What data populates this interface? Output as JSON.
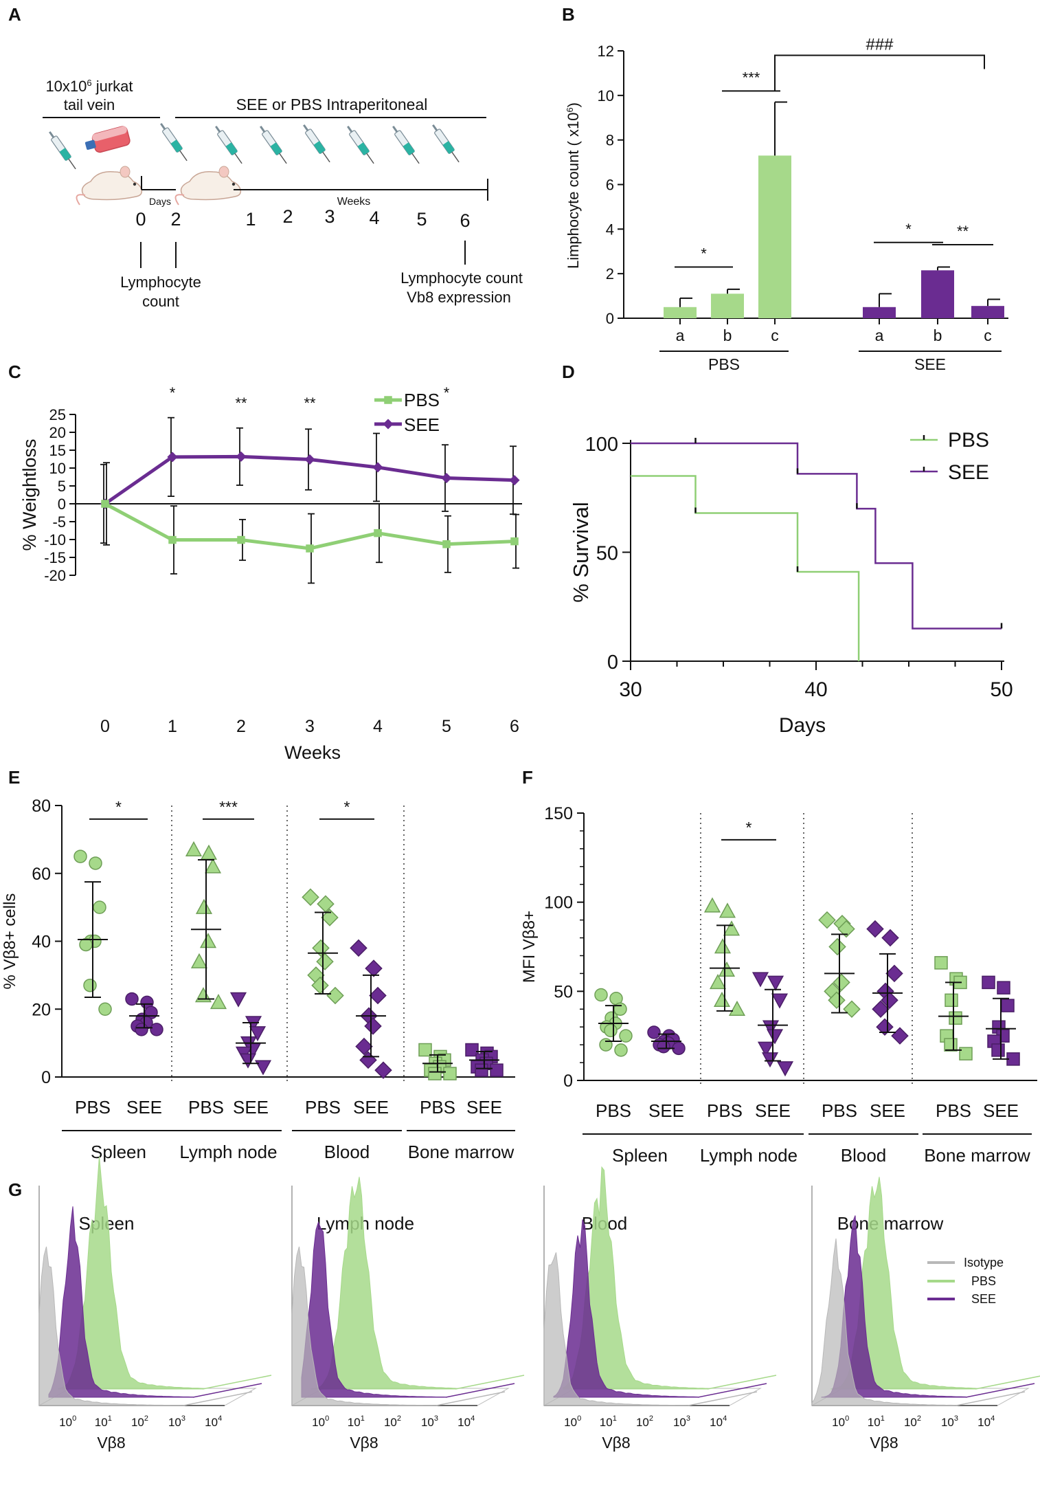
{
  "colors": {
    "pbs": "#a6d98a",
    "pbs_line": "#8fcf75",
    "see": "#6a2c91",
    "isotype": "#b8b8b8",
    "axis": "#111111"
  },
  "panel_labels": [
    "A",
    "B",
    "C",
    "D",
    "E",
    "F",
    "G"
  ],
  "chart_data": [
    {
      "panel": "A",
      "type": "other",
      "injection_label": "10x10⁶ jurkat tail vein",
      "injection_line1": "10x10",
      "injection_sup": "6",
      "injection_line2": " jurkat",
      "injection_line3": "tail vein",
      "treatment_label": "SEE or PBS Intraperitoneal",
      "days_label": "Days",
      "weeks_label": "Weeks",
      "timepoints": [
        "0",
        "2",
        "1",
        "2",
        "3",
        "4",
        "5",
        "6"
      ],
      "readout_early": [
        "Lymphocyte",
        "count"
      ],
      "readout_late": [
        "Lymphocyte count",
        "Vb8 expression"
      ],
      "icons": {
        "syringes": 8,
        "mice": 2,
        "flask": 1
      }
    },
    {
      "panel": "B",
      "type": "bar",
      "ylabel": "Limphocyte count  ( x10⁶)",
      "ylabel_main": "Limphocyte count  ( x10",
      "ylabel_sup": "6",
      "ylabel_close": ")",
      "ylim": [
        0,
        12
      ],
      "yticks": [
        0,
        2,
        4,
        6,
        8,
        10,
        12
      ],
      "group_names": [
        "PBS",
        "SEE"
      ],
      "categories": [
        "a",
        "b",
        "c"
      ],
      "series": [
        {
          "name": "PBS",
          "values": [
            0.5,
            1.1,
            7.3
          ],
          "errors": [
            0.4,
            0.2,
            2.4
          ]
        },
        {
          "name": "SEE",
          "values": [
            0.5,
            2.15,
            0.55
          ],
          "errors": [
            0.6,
            0.15,
            0.3
          ]
        }
      ],
      "significance": [
        {
          "group": 0,
          "from": 0,
          "to": 1,
          "label": "*",
          "y": 2.3
        },
        {
          "group": 0,
          "from": 1,
          "to": 2,
          "label": "***",
          "y": 10.2
        },
        {
          "group": 1,
          "from": 0,
          "to": 1,
          "label": "*",
          "y": 3.4
        },
        {
          "group": 1,
          "from": 1,
          "to": 2,
          "label": "**",
          "y": 3.3
        }
      ],
      "bracket": {
        "label": "###",
        "y": 11.8
      }
    },
    {
      "panel": "C",
      "type": "line",
      "xlabel": "Weeks",
      "ylabel": "%  Weightloss",
      "x": [
        0,
        1,
        2,
        3,
        4,
        5,
        6
      ],
      "ylim": [
        -20,
        25
      ],
      "yticks": [
        -20,
        -15,
        -10,
        -5,
        0,
        5,
        10,
        15,
        20,
        25
      ],
      "legend": [
        "PBS",
        "SEE"
      ],
      "series": [
        {
          "name": "SEE",
          "values": [
            0,
            13.1,
            13.2,
            12.4,
            10.2,
            7.2,
            6.6
          ],
          "errors": [
            11,
            11,
            8,
            8.5,
            9.5,
            9.3,
            9.5
          ]
        },
        {
          "name": "PBS",
          "values": [
            0,
            -10.1,
            -10.1,
            -12.5,
            -8.2,
            -11.3,
            -10.5
          ],
          "errors": [
            11.5,
            9.5,
            5.7,
            9.7,
            8.2,
            7.9,
            7.5
          ]
        }
      ],
      "significance": [
        {
          "x": 1,
          "label": "*"
        },
        {
          "x": 2,
          "label": "**"
        },
        {
          "x": 3,
          "label": "**"
        },
        {
          "x": 5,
          "label": "*"
        }
      ]
    },
    {
      "panel": "D",
      "type": "line",
      "xlabel": "Days",
      "ylabel": "% Survival",
      "xlim": [
        30,
        50
      ],
      "xticks": [
        30,
        40,
        50
      ],
      "ylim": [
        0,
        100
      ],
      "yticks": [
        0,
        50,
        100
      ],
      "legend": [
        "PBS",
        "SEE"
      ],
      "series": [
        {
          "name": "PBS",
          "x": [
            30,
            33.5,
            33.5,
            39,
            39,
            42.3,
            42.3
          ],
          "values": [
            85,
            85,
            68,
            68,
            41,
            41,
            0
          ],
          "censor": [
            [
              33.5,
              68
            ],
            [
              39,
              41
            ]
          ]
        },
        {
          "name": "SEE",
          "x": [
            30,
            39,
            39,
            42.2,
            42.2,
            43.2,
            43.2,
            45.2,
            45.2,
            50
          ],
          "values": [
            100,
            100,
            86,
            86,
            70,
            70,
            45,
            45,
            15,
            15
          ],
          "censor": [
            [
              33.5,
              100
            ],
            [
              39,
              86
            ],
            [
              42.2,
              70
            ],
            [
              50,
              15
            ]
          ]
        }
      ]
    },
    {
      "panel": "E",
      "type": "scatter",
      "ylabel": "% Vβ8+  cells",
      "ylim": [
        0,
        80
      ],
      "yticks": [
        0,
        20,
        40,
        60,
        80
      ],
      "x_labels": [
        "PBS",
        "SEE"
      ],
      "tissues": [
        "Spleen",
        "Lymph node",
        "Blood",
        "Bone marrow"
      ],
      "markers": [
        "circle",
        "triangle",
        "diamond",
        "square"
      ],
      "series": [
        {
          "tissue": "Spleen",
          "group": "PBS",
          "mean": 40.5,
          "sd": 17,
          "values": [
            65,
            63,
            50,
            40,
            40,
            39,
            27,
            20
          ]
        },
        {
          "tissue": "Spleen",
          "group": "SEE",
          "mean": 18,
          "sd": 3.5,
          "values": [
            23,
            22,
            19,
            17,
            16,
            15,
            14,
            14
          ]
        },
        {
          "tissue": "Lymph node",
          "group": "PBS",
          "mean": 43.5,
          "sd": 20.5,
          "values": [
            67,
            66,
            62,
            50,
            40,
            34,
            24,
            22
          ]
        },
        {
          "tissue": "Lymph node",
          "group": "SEE",
          "mean": 10,
          "sd": 6,
          "values": [
            23,
            16,
            13,
            10,
            8,
            7,
            5,
            3
          ]
        },
        {
          "tissue": "Blood",
          "group": "PBS",
          "mean": 36.5,
          "sd": 12,
          "values": [
            53,
            51,
            47,
            38,
            34,
            30,
            27,
            24
          ]
        },
        {
          "tissue": "Blood",
          "group": "SEE",
          "mean": 18,
          "sd": 12,
          "values": [
            38,
            32,
            24,
            18,
            15,
            9,
            5,
            2
          ]
        },
        {
          "tissue": "Bone marrow",
          "group": "PBS",
          "mean": 4,
          "sd": 2.5,
          "values": [
            8,
            6,
            5,
            4,
            3,
            2,
            1,
            1
          ]
        },
        {
          "tissue": "Bone marrow",
          "group": "SEE",
          "mean": 5,
          "sd": 2.5,
          "values": [
            8,
            7,
            6,
            5,
            4,
            3,
            2,
            2
          ]
        }
      ],
      "significance": [
        {
          "tissue": 0,
          "label": "*",
          "y": 76
        },
        {
          "tissue": 1,
          "label": "***",
          "y": 76
        },
        {
          "tissue": 2,
          "label": "*",
          "y": 76
        }
      ]
    },
    {
      "panel": "F",
      "type": "scatter",
      "ylabel": "MFI  Vβ8+",
      "ylim": [
        0,
        150
      ],
      "yticks": [
        0,
        50,
        100,
        150
      ],
      "x_labels": [
        "PBS",
        "SEE"
      ],
      "tissues": [
        "Spleen",
        "Lymph node",
        "Blood",
        "Bone marrow"
      ],
      "markers": [
        "circle",
        "triangle",
        "diamond",
        "square"
      ],
      "series": [
        {
          "tissue": "Spleen",
          "group": "PBS",
          "mean": 32,
          "sd": 10,
          "values": [
            48,
            46,
            40,
            35,
            32,
            30,
            28,
            25,
            20,
            17
          ]
        },
        {
          "tissue": "Spleen",
          "group": "SEE",
          "mean": 22,
          "sd": 4,
          "values": [
            27,
            25,
            23,
            22,
            21,
            20,
            19,
            18
          ]
        },
        {
          "tissue": "Lymph node",
          "group": "PBS",
          "mean": 63,
          "sd": 24,
          "values": [
            98,
            95,
            85,
            75,
            62,
            55,
            45,
            40
          ]
        },
        {
          "tissue": "Lymph node",
          "group": "SEE",
          "mean": 31,
          "sd": 20,
          "values": [
            57,
            55,
            45,
            30,
            25,
            18,
            12,
            7
          ]
        },
        {
          "tissue": "Blood",
          "group": "PBS",
          "mean": 60,
          "sd": 22,
          "values": [
            90,
            88,
            85,
            75,
            55,
            50,
            45,
            40
          ]
        },
        {
          "tissue": "Blood",
          "group": "SEE",
          "mean": 49,
          "sd": 22,
          "values": [
            85,
            80,
            60,
            50,
            45,
            40,
            30,
            25
          ]
        },
        {
          "tissue": "Bone marrow",
          "group": "PBS",
          "mean": 36,
          "sd": 19,
          "values": [
            66,
            57,
            55,
            45,
            35,
            25,
            20,
            15
          ]
        },
        {
          "tissue": "Bone marrow",
          "group": "SEE",
          "mean": 29,
          "sd": 17,
          "values": [
            55,
            52,
            42,
            30,
            25,
            22,
            17,
            12
          ]
        }
      ],
      "significance": [
        {
          "tissue": 1,
          "label": "*",
          "y": 135
        }
      ]
    },
    {
      "panel": "G",
      "type": "histogram",
      "xlabel": "Vβ8",
      "x_ticks": [
        {
          "base": "10",
          "exp": "0"
        },
        {
          "base": "10",
          "exp": "1"
        },
        {
          "base": "10",
          "exp": "2"
        },
        {
          "base": "10",
          "exp": "3"
        },
        {
          "base": "10",
          "exp": "4"
        }
      ],
      "legend": [
        "Isotype",
        "PBS",
        "SEE"
      ],
      "plots": [
        {
          "title": "Spleen",
          "peaks": {
            "Isotype": 0.2,
            "SEE": 0.7,
            "PBS": 1.2
          }
        },
        {
          "title": "Lymph node",
          "peaks": {
            "Isotype": 0.2,
            "SEE": 0.5,
            "PBS": 1.3
          }
        },
        {
          "title": "Blood",
          "peaks": {
            "Isotype": 0.25,
            "SEE": 0.8,
            "PBS": 1.1
          }
        },
        {
          "title": "Bone marrow",
          "peaks": {
            "Isotype": 0.7,
            "SEE": 0.95,
            "PBS": 1.3
          }
        }
      ]
    }
  ]
}
